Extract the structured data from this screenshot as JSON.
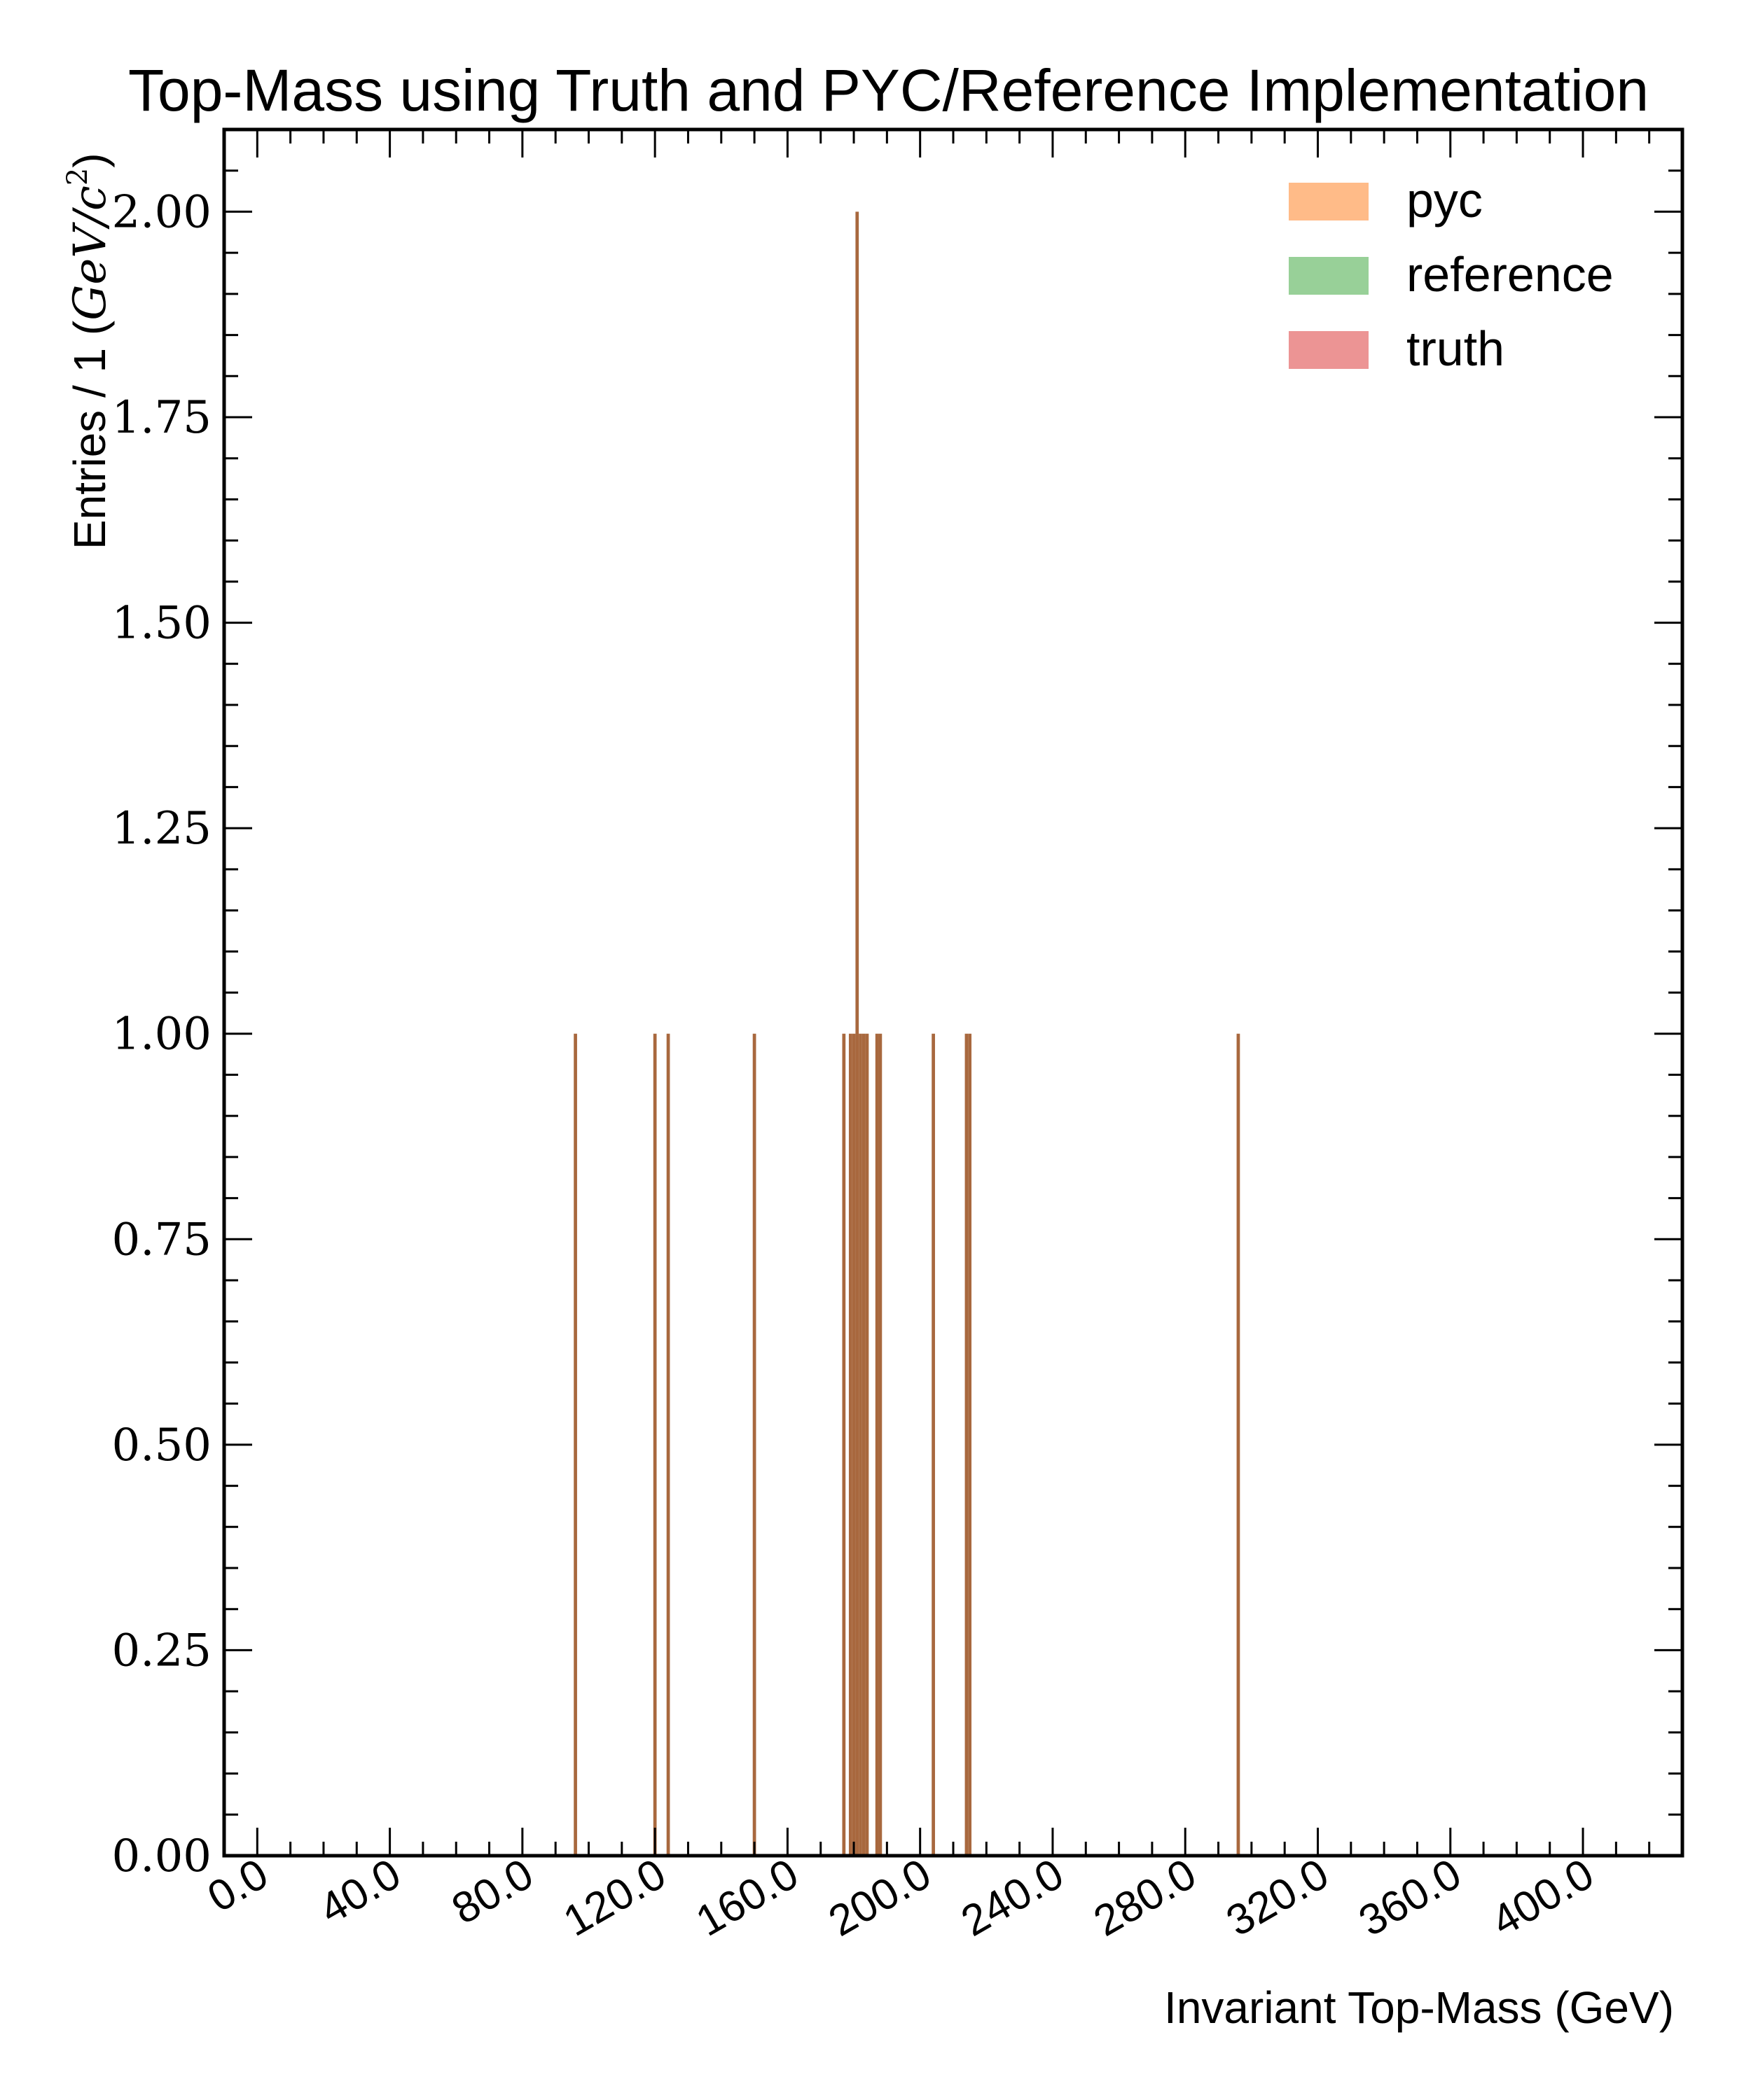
{
  "chart_data": {
    "type": "bar",
    "title": "Top-Mass using Truth and PYC/Reference Implementation",
    "xlabel": "Invariant Top-Mass (GeV)",
    "ylabel_prefix": "Entries / 1 (",
    "ylabel_unit": "GeV/c",
    "ylabel_exponent": "2",
    "ylabel_suffix": ")",
    "xlim": [
      -10,
      430
    ],
    "ylim": [
      0,
      2.1
    ],
    "xticks": [
      "0.0",
      "40.0",
      "80.0",
      "120.0",
      "160.0",
      "200.0",
      "240.0",
      "280.0",
      "320.0",
      "360.0",
      "400.0"
    ],
    "yticks": [
      "0.00",
      "0.25",
      "0.50",
      "0.75",
      "1.00",
      "1.25",
      "1.50",
      "1.75",
      "2.00"
    ],
    "bin_width": 1,
    "grid": false,
    "legend_position": "top-right",
    "series": [
      {
        "name": "pyc",
        "color": "#ffbb88"
      },
      {
        "name": "reference",
        "color": "#98d098"
      },
      {
        "name": "truth",
        "color": "#ec9494"
      }
    ],
    "overlap_color": "#a8683e",
    "bins": [
      {
        "x": 96,
        "count": 1
      },
      {
        "x": 120,
        "count": 1
      },
      {
        "x": 124,
        "count": 1
      },
      {
        "x": 150,
        "count": 1
      },
      {
        "x": 177,
        "count": 1
      },
      {
        "x": 179,
        "count": 1
      },
      {
        "x": 180,
        "count": 1
      },
      {
        "x": 181,
        "count": 2
      },
      {
        "x": 182,
        "count": 1
      },
      {
        "x": 183,
        "count": 1
      },
      {
        "x": 184,
        "count": 1
      },
      {
        "x": 187,
        "count": 1
      },
      {
        "x": 188,
        "count": 1
      },
      {
        "x": 204,
        "count": 1
      },
      {
        "x": 214,
        "count": 1
      },
      {
        "x": 215,
        "count": 1
      },
      {
        "x": 296,
        "count": 1
      }
    ]
  }
}
